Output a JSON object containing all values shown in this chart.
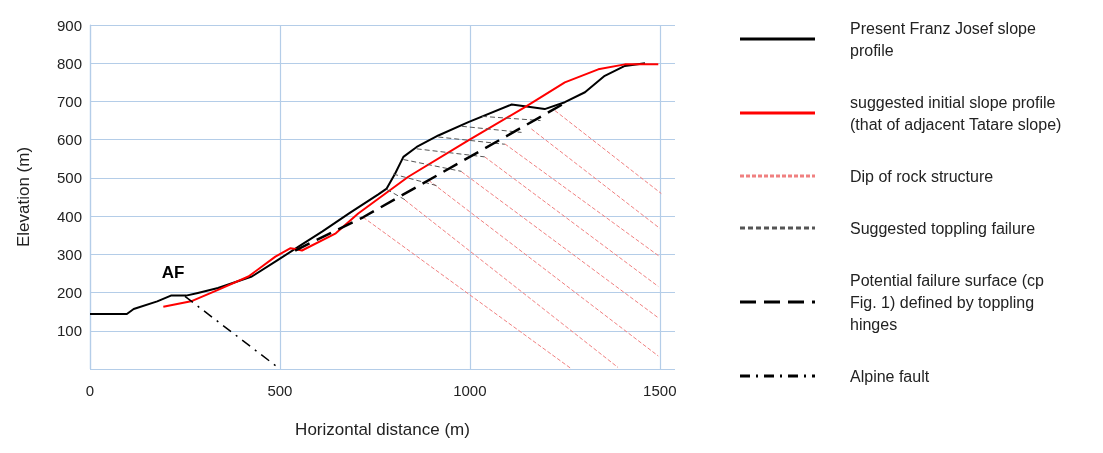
{
  "chart_data": {
    "type": "line",
    "xlabel": "Horizontal distance (m)",
    "ylabel": "Elevation (m)",
    "xlim": [
      0,
      1540
    ],
    "xticks": [
      0,
      500,
      1000,
      1500
    ],
    "ylim": [
      0,
      900
    ],
    "yticks": [
      {
        "value": 0,
        "label": null
      },
      100,
      200,
      300,
      400,
      500,
      600,
      700,
      800,
      900
    ],
    "grid": true,
    "legend": "right",
    "marker": "none",
    "annotations": [
      {
        "text": "AF",
        "x": 250,
        "y": 190
      }
    ],
    "series": [
      {
        "name": "Present Franz Josef slope profile",
        "color": "#000000",
        "line_style": "solid",
        "x": [
          0,
          97,
          115,
          177,
          213,
          253,
          284,
          337,
          426,
          496,
          550,
          612,
          683,
          759,
          781,
          803,
          825,
          860,
          917,
          996,
          1110,
          1154,
          1197,
          1250,
          1303,
          1355,
          1408,
          1461
        ],
        "values": [
          144,
          144,
          157,
          177,
          192,
          192,
          199,
          212,
          242,
          286,
          321,
          360,
          408,
          457,
          472,
          511,
          555,
          581,
          611,
          646,
          692,
          686,
          680,
          698,
          724,
          767,
          793,
          800
        ]
      },
      {
        "name": "suggested initial slope profile (that of adjacent Tatare slope)",
        "color": "#ff0000",
        "line_style": "solid",
        "x": [
          193,
          266,
          337,
          417,
          488,
          528,
          540,
          558,
          647,
          706,
          838,
          996,
          1145,
          1250,
          1338,
          1408,
          1496
        ],
        "values": [
          163,
          177,
          207,
          242,
          294,
          316,
          314,
          310,
          355,
          407,
          503,
          598,
          685,
          750,
          784,
          797,
          797
        ]
      },
      {
        "name": "Dip of rock structure",
        "color": "#f08080",
        "line_style": "dashed",
        "x": [
          719,
          1268,
          null,
          829,
          1390,
          null,
          891,
          1496,
          null,
          978,
          1496,
          null,
          1039,
          1496,
          null,
          1092,
          1500,
          null,
          1162,
          1500,
          null,
          1224,
          1504
        ],
        "values": [
          397,
          0,
          null,
          442,
          4,
          null,
          494,
          34,
          null,
          516,
          134,
          null,
          555,
          216,
          null,
          589,
          294,
          null,
          628,
          368,
          null,
          676,
          459
        ]
      },
      {
        "name": "Suggested toppling failure",
        "color": "#555555",
        "line_style": "dashed",
        "x": [
          781,
          829,
          null,
          798,
          912,
          null,
          825,
          978,
          null,
          860,
          1039,
          null,
          917,
          1092,
          null,
          979,
          1136,
          null,
          1032,
          1186
        ],
        "values": [
          470,
          443,
          null,
          510,
          480,
          null,
          548,
          517,
          null,
          576,
          555,
          null,
          607,
          588,
          null,
          635,
          619,
          null,
          661,
          650
        ]
      },
      {
        "name": "Potential failure surface (cp Fig. 1) defined by toppling hinges",
        "color": "#000000",
        "line_style": "dashed",
        "x": [
          540,
          719,
          1254
        ],
        "values": [
          310,
          397,
          698
        ]
      },
      {
        "name": "Alpine fault",
        "color": "#000000",
        "line_style": "dashdot",
        "x": [
          250,
          500
        ],
        "values": [
          190,
          0
        ]
      }
    ]
  }
}
